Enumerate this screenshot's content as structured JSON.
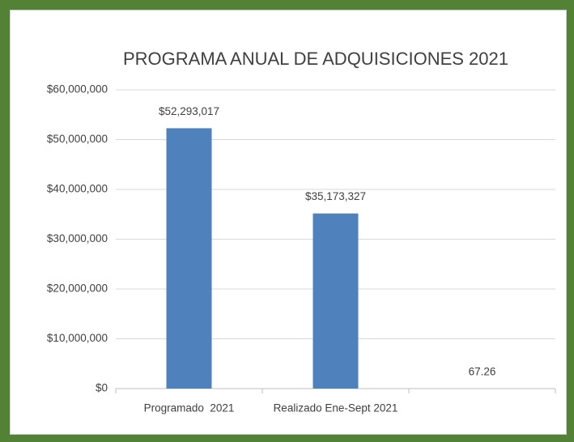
{
  "chart_data": {
    "type": "bar",
    "title": "PROGRAMA ANUAL DE ADQUISICIONES 2021",
    "categories": [
      "Programado  2021",
      "Realizado Ene-Sept 2021",
      null
    ],
    "values": [
      52293017,
      35173327,
      67.26
    ],
    "value_labels": [
      "$52,293,017",
      "$35,173,327",
      "67.26"
    ],
    "color": "#4f81bd",
    "ylim": [
      0,
      60000000
    ],
    "yticks": [
      {
        "value": 0,
        "label": "$0"
      },
      {
        "value": 10000000,
        "label": "$10,000,000"
      },
      {
        "value": 20000000,
        "label": "$20,000,000"
      },
      {
        "value": 30000000,
        "label": "$30,000,000"
      },
      {
        "value": 40000000,
        "label": "$40,000,000"
      },
      {
        "value": 50000000,
        "label": "$50,000,000"
      },
      {
        "value": 60000000,
        "label": "$60,000,000"
      }
    ],
    "grid": true
  }
}
